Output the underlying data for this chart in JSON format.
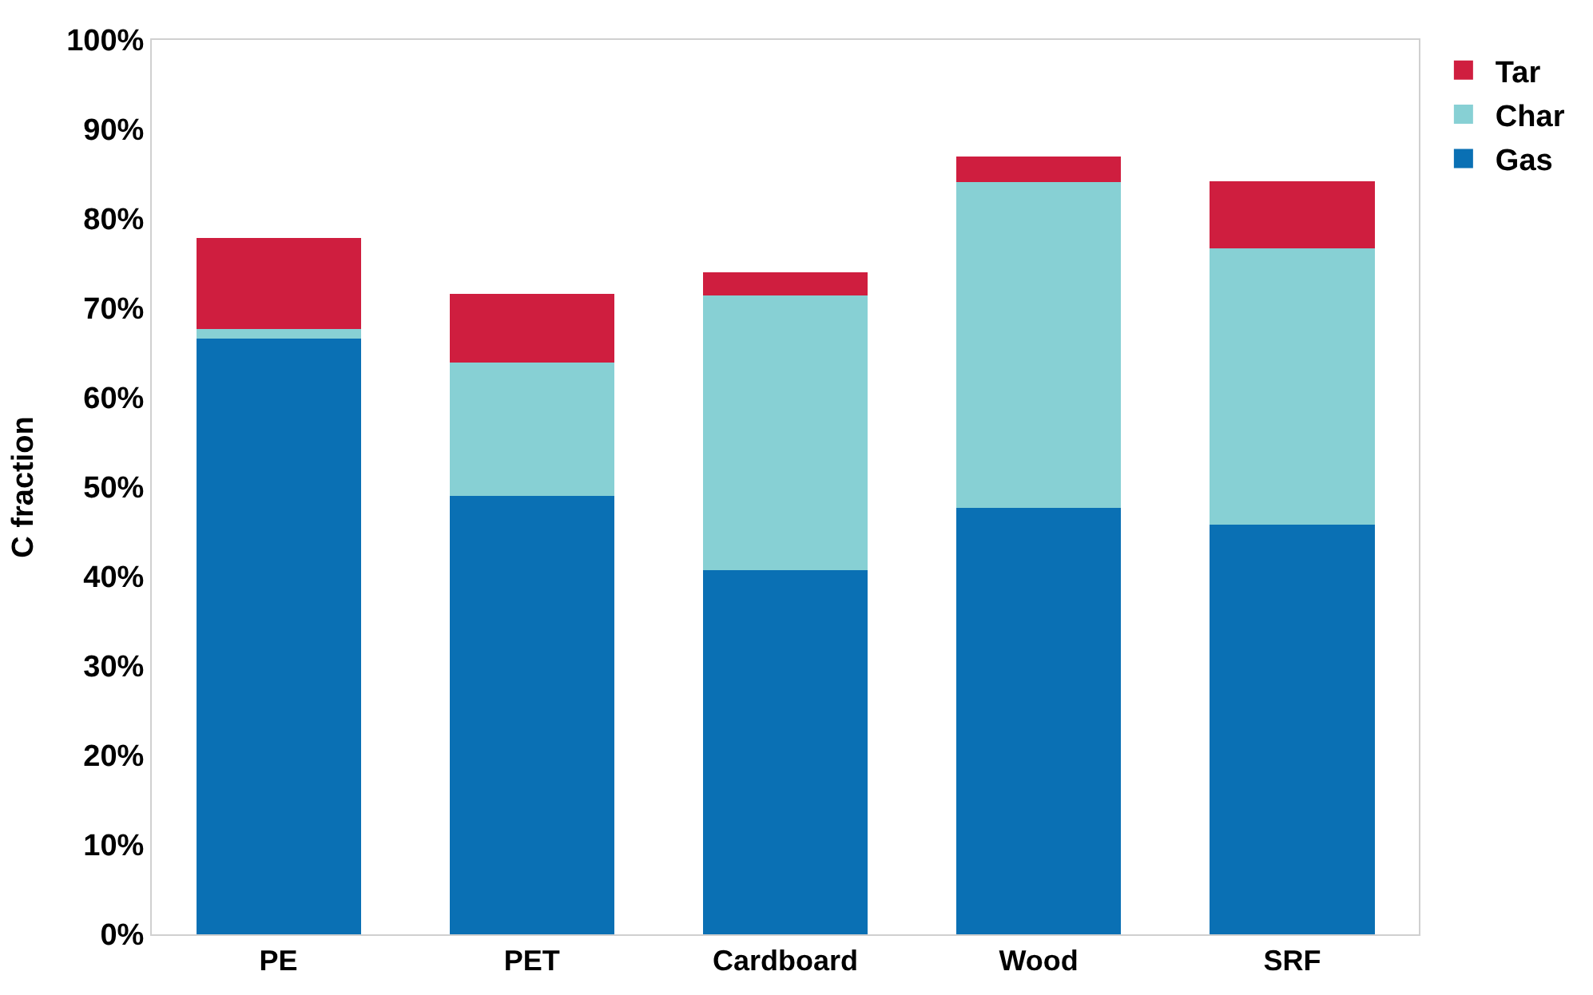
{
  "chart_data": {
    "type": "bar",
    "stacked": true,
    "ylabel": "C fraction",
    "categories": [
      "PE",
      "PET",
      "Cardboard",
      "Wood",
      "SRF"
    ],
    "series": [
      {
        "name": "Gas",
        "color": "#0a70b4",
        "values": [
          66.6,
          49.0,
          40.7,
          47.7,
          45.8
        ]
      },
      {
        "name": "Char",
        "color": "#87d0d4",
        "values": [
          1.1,
          14.9,
          30.7,
          36.4,
          30.9
        ]
      },
      {
        "name": "Tar",
        "color": "#cf1e3f",
        "values": [
          10.2,
          7.7,
          2.6,
          2.9,
          7.5
        ]
      }
    ],
    "ylim": [
      0,
      100
    ],
    "yticks": [
      {
        "value": 0,
        "label": "0%"
      },
      {
        "value": 10,
        "label": "10%"
      },
      {
        "value": 20,
        "label": "20%"
      },
      {
        "value": 30,
        "label": "30%"
      },
      {
        "value": 40,
        "label": "40%"
      },
      {
        "value": 50,
        "label": "50%"
      },
      {
        "value": 60,
        "label": "60%"
      },
      {
        "value": 70,
        "label": "70%"
      },
      {
        "value": 80,
        "label": "80%"
      },
      {
        "value": 90,
        "label": "90%"
      },
      {
        "value": 100,
        "label": "100%"
      }
    ],
    "legend": "top right"
  }
}
